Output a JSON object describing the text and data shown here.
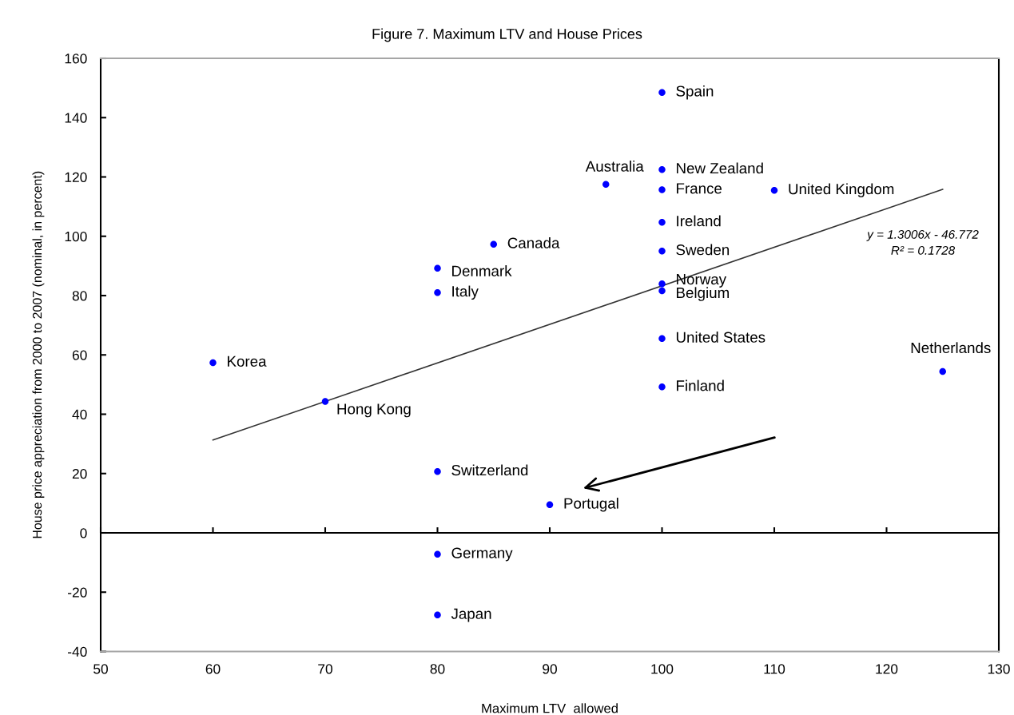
{
  "chart_data": {
    "type": "scatter",
    "title": "Figure 7. Maximum LTV and House Prices",
    "xlabel": "Maximum LTV  allowed",
    "ylabel": "House price appreciation from 2000 to 2007 (nominal, in percent)",
    "xlim": [
      50,
      130
    ],
    "xticks": [
      50,
      60,
      70,
      80,
      90,
      100,
      110,
      120,
      130
    ],
    "ylim": [
      -40,
      160
    ],
    "yticks": [
      -40,
      -20,
      0,
      20,
      40,
      60,
      80,
      100,
      120,
      140,
      160
    ],
    "grid": false,
    "legend": false,
    "marker": "circle",
    "ref_lines": [
      {
        "axis": "y",
        "value": 0,
        "color": "#000000"
      }
    ],
    "annotations": [
      "y = 1.3006x - 46.772",
      "R² = 0.1728"
    ],
    "series": [
      {
        "name": "Spain",
        "color": "#0000ff",
        "x": [
          100
        ],
        "values": [
          148.5
        ]
      },
      {
        "name": "Australia",
        "color": "#0000ff",
        "x": [
          95
        ],
        "values": [
          117.5
        ]
      },
      {
        "name": "New Zealand",
        "color": "#0000ff",
        "x": [
          100
        ],
        "values": [
          122.5
        ]
      },
      {
        "name": "France",
        "color": "#0000ff",
        "x": [
          100
        ],
        "values": [
          115.7
        ]
      },
      {
        "name": "United Kingdom",
        "color": "#0000ff",
        "x": [
          110
        ],
        "values": [
          115.5
        ]
      },
      {
        "name": "Ireland",
        "color": "#0000ff",
        "x": [
          100
        ],
        "values": [
          104.7
        ]
      },
      {
        "name": "Sweden",
        "color": "#0000ff",
        "x": [
          100
        ],
        "values": [
          95
        ]
      },
      {
        "name": "Norway",
        "color": "#0000ff",
        "x": [
          100
        ],
        "values": [
          84
        ]
      },
      {
        "name": "Belgium",
        "color": "#0000ff",
        "x": [
          100
        ],
        "values": [
          81.6
        ]
      },
      {
        "name": "Canada",
        "color": "#0000ff",
        "x": [
          85
        ],
        "values": [
          97.3
        ]
      },
      {
        "name": "Denmark",
        "color": "#0000ff",
        "x": [
          80
        ],
        "values": [
          89.2
        ]
      },
      {
        "name": "Italy",
        "color": "#0000ff",
        "x": [
          80
        ],
        "values": [
          81
        ]
      },
      {
        "name": "United States",
        "color": "#0000ff",
        "x": [
          100
        ],
        "values": [
          65.5
        ]
      },
      {
        "name": "Finland",
        "color": "#0000ff",
        "x": [
          100
        ],
        "values": [
          49.2
        ]
      },
      {
        "name": "Netherlands",
        "color": "#0000ff",
        "x": [
          125
        ],
        "values": [
          54.4
        ]
      },
      {
        "name": "Korea",
        "color": "#0000ff",
        "x": [
          60
        ],
        "values": [
          57.4
        ]
      },
      {
        "name": "Hong Kong",
        "color": "#0000ff",
        "x": [
          70
        ],
        "values": [
          44.3
        ]
      },
      {
        "name": "Switzerland",
        "color": "#0000ff",
        "x": [
          80
        ],
        "values": [
          20.7
        ]
      },
      {
        "name": "Portugal",
        "color": "#0000ff",
        "x": [
          90
        ],
        "values": [
          9.5
        ]
      },
      {
        "name": "Germany",
        "color": "#0000ff",
        "x": [
          80
        ],
        "values": [
          -7.2
        ]
      },
      {
        "name": "Japan",
        "color": "#0000ff",
        "x": [
          80
        ],
        "values": [
          -27.7
        ]
      },
      {
        "type": "line",
        "color": "#333333",
        "marker": "none",
        "x": [
          60,
          125
        ],
        "values": [
          31.3,
          115.8
        ]
      }
    ]
  }
}
